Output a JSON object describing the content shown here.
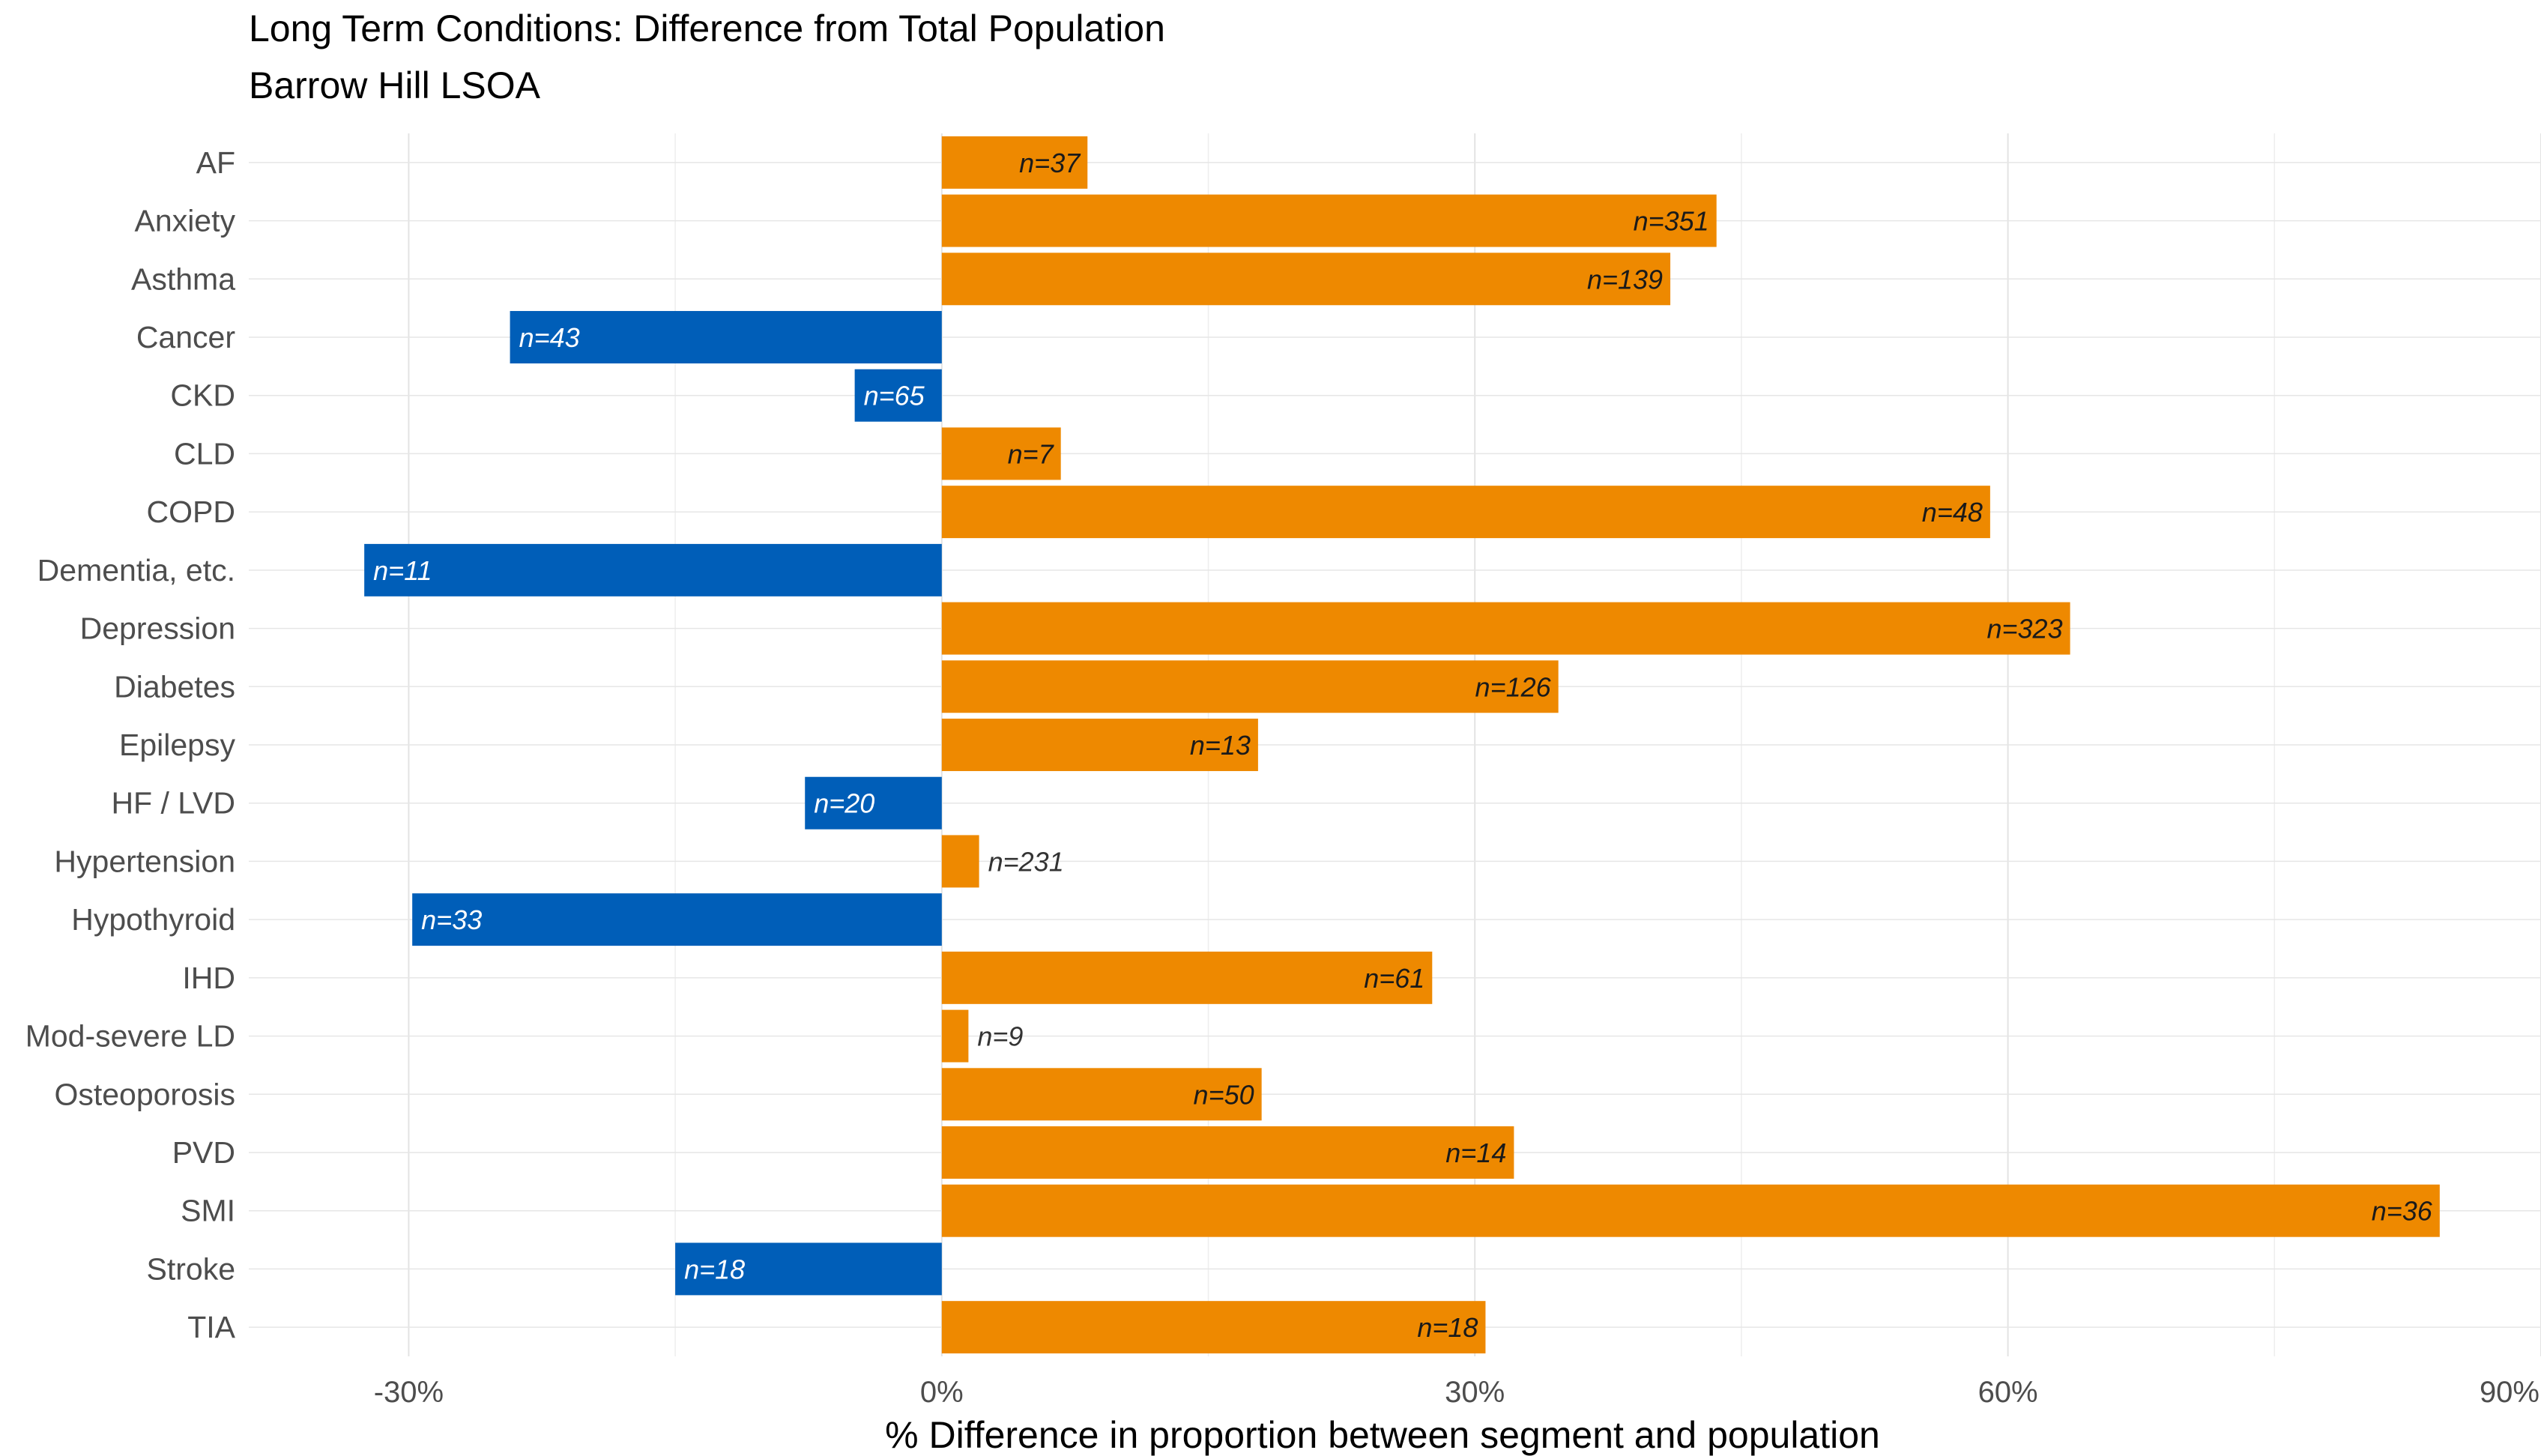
{
  "chart_data": {
    "type": "bar",
    "orientation": "horizontal",
    "title": "Long Term Conditions: Difference from Total Population",
    "subtitle": "Barrow Hill LSOA",
    "xlabel": "% Difference in proportion between segment and population",
    "ylabel": "",
    "xlim": [
      -39,
      90
    ],
    "x_ticks": [
      -30,
      0,
      30,
      60,
      90
    ],
    "x_tick_labels": [
      "-30%",
      "0%",
      "30%",
      "60%",
      "90%"
    ],
    "grid": true,
    "legend": "none",
    "colors": {
      "positive": "#EE8900",
      "negative": "#005EB8",
      "label_on_positive": "#1a1a1a",
      "label_on_negative": "#ffffff",
      "label_outside": "#333333"
    },
    "categories": [
      "AF",
      "Anxiety",
      "Asthma",
      "Cancer",
      "CKD",
      "CLD",
      "COPD",
      "Dementia, etc.",
      "Depression",
      "Diabetes",
      "Epilepsy",
      "HF / LVD",
      "Hypertension",
      "Hypothyroid",
      "IHD",
      "Mod-severe LD",
      "Osteoporosis",
      "PVD",
      "SMI",
      "Stroke",
      "TIA"
    ],
    "values": [
      8.2,
      43.6,
      41.0,
      -24.3,
      -4.9,
      6.7,
      59.0,
      -32.5,
      63.5,
      34.7,
      17.8,
      -7.7,
      2.1,
      -29.8,
      27.6,
      1.5,
      18.0,
      32.2,
      84.3,
      -15.0,
      30.6
    ],
    "labels": [
      "n=37",
      "n=351",
      "n=139",
      "n=43",
      "n=65",
      "n=7",
      "n=48",
      "n=11",
      "n=323",
      "n=126",
      "n=13",
      "n=20",
      "n=231",
      "n=33",
      "n=61",
      "n=9",
      "n=50",
      "n=14",
      "n=36",
      "n=18",
      "n=18"
    ]
  }
}
